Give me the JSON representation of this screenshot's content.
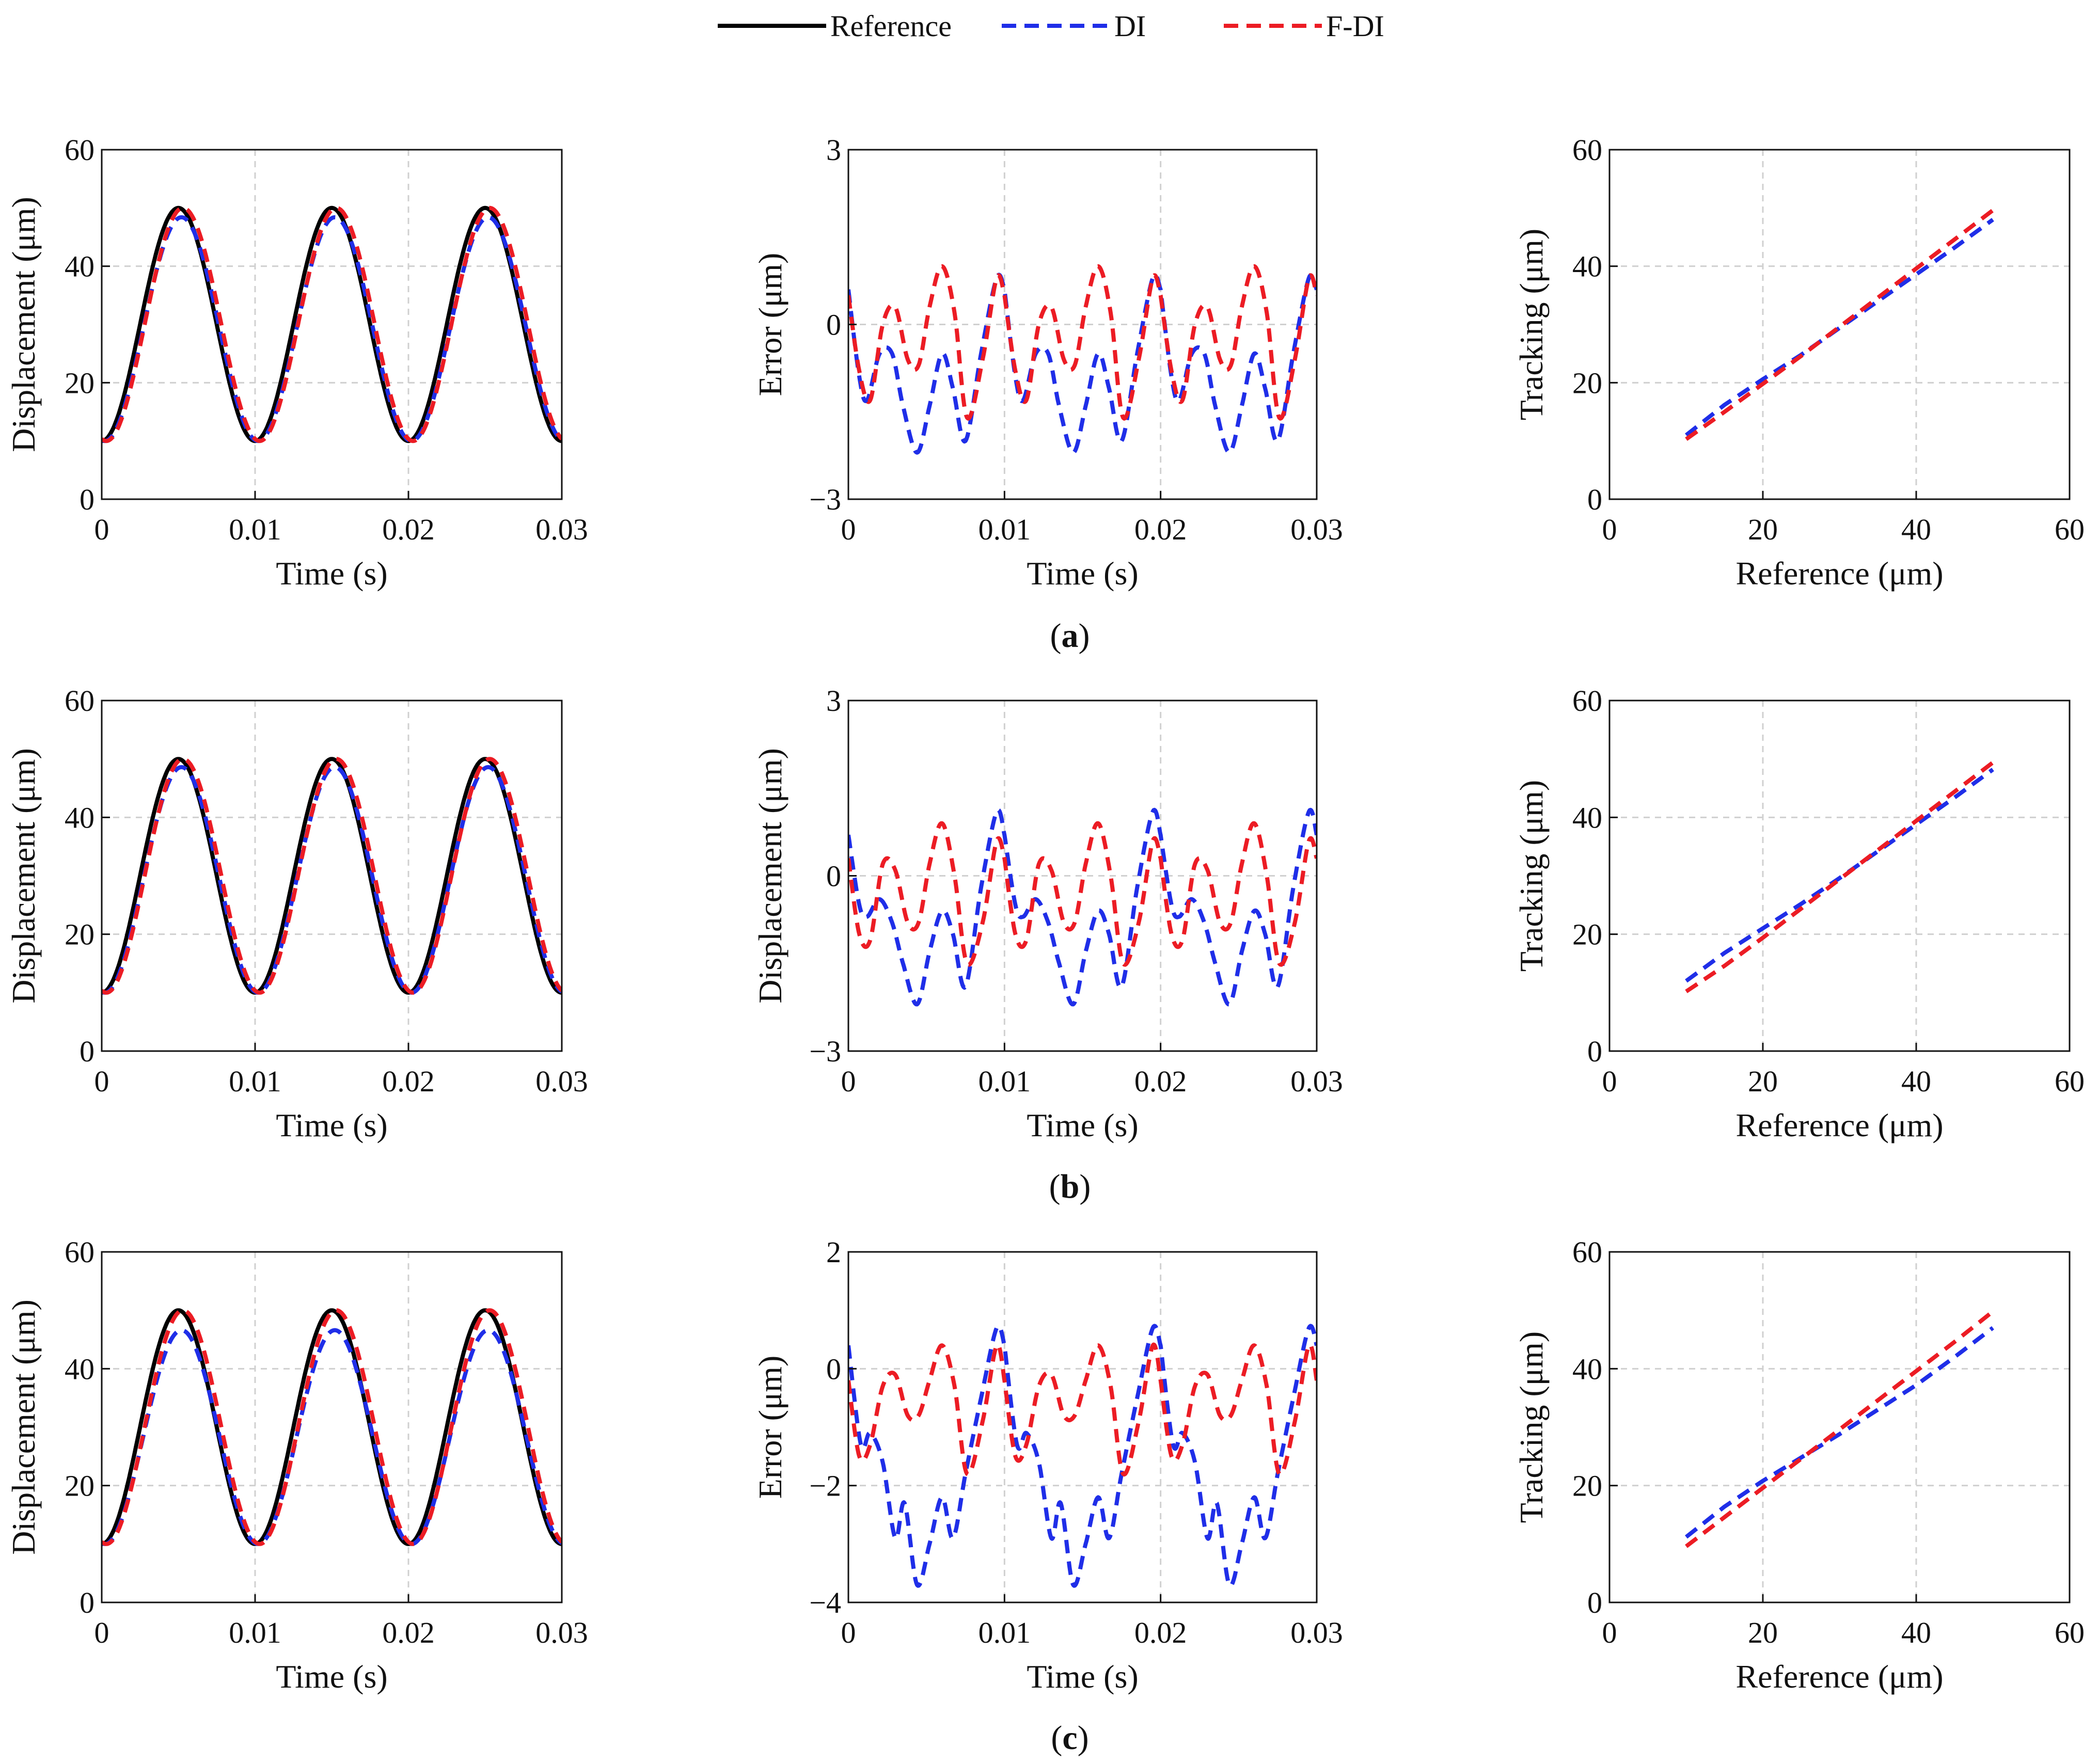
{
  "colors": {
    "reference": "#000000",
    "di": "#1f2ee8",
    "fdi": "#ec1c24",
    "grid": "#d0d0d0",
    "axis": "#111111"
  },
  "legend": [
    {
      "label": "Reference",
      "style": "solid",
      "color": "#000000"
    },
    {
      "label": "DI",
      "style": "dashed",
      "color": "#1f2ee8"
    },
    {
      "label": "F-DI",
      "style": "dashed",
      "color": "#ec1c24"
    }
  ],
  "rows": [
    {
      "caption": {
        "open": "(",
        "letter": "a",
        "close": ")"
      }
    },
    {
      "caption": {
        "open": "(",
        "letter": "b",
        "close": ")"
      }
    },
    {
      "caption": {
        "open": "(",
        "letter": "c",
        "close": ")"
      }
    }
  ],
  "chart_data": [
    {
      "type": "line",
      "row": "a",
      "col": 0,
      "kind": "disp",
      "xlabel": "Time (s)",
      "ylabel": "Displacement (μm)",
      "xlim": [
        0,
        0.03
      ],
      "ylim": [
        0,
        60
      ],
      "xticks": [
        0,
        0.01,
        0.02,
        0.03
      ],
      "yticks": [
        0,
        20,
        40,
        60
      ],
      "xticklabels": [
        "0",
        "0.01",
        "0.02",
        "0.03"
      ],
      "yticklabels": [
        "0",
        "20",
        "40",
        "60"
      ],
      "series": [
        {
          "name": "Reference",
          "form": "sine",
          "offset": 30,
          "amp": 20,
          "period": 0.01
        },
        {
          "name": "DI",
          "form": "sine",
          "offset": 29.2,
          "amp": 19.2,
          "period": 0.01,
          "lag": 0.0002
        },
        {
          "name": "F-DI",
          "form": "sine",
          "offset": 30,
          "amp": 20,
          "period": 0.01,
          "lag": 0.0003
        }
      ]
    },
    {
      "type": "line",
      "row": "a",
      "col": 1,
      "kind": "error",
      "xlabel": "Time (s)",
      "ylabel": "Error (μm)",
      "xlim": [
        0,
        0.03
      ],
      "ylim": [
        -3,
        3
      ],
      "xticks": [
        0,
        0.01,
        0.02,
        0.03
      ],
      "yticks": [
        -3,
        0,
        3
      ],
      "xticklabels": [
        "0",
        "0.01",
        "0.02",
        "0.03"
      ],
      "yticklabels": [
        "−3",
        "0",
        "3"
      ],
      "series": [
        {
          "name": "DI",
          "period": 0.01,
          "x": [
            0,
            0.0007,
            0.0012,
            0.002,
            0.0028,
            0.0035,
            0.0044,
            0.0052,
            0.006,
            0.0067,
            0.0075,
            0.0085,
            0.0095,
            0.01
          ],
          "y": [
            0.6,
            -0.9,
            -1.3,
            -0.5,
            -0.5,
            -1.4,
            -2.2,
            -1.4,
            -0.5,
            -1.1,
            -2.0,
            -0.5,
            0.8,
            0.6
          ]
        },
        {
          "name": "F-DI",
          "period": 0.01,
          "x": [
            0,
            0.0007,
            0.0014,
            0.0022,
            0.003,
            0.0038,
            0.0045,
            0.0052,
            0.006,
            0.0068,
            0.0076,
            0.0086,
            0.0095,
            0.01
          ],
          "y": [
            0.5,
            -0.8,
            -1.3,
            0.0,
            0.3,
            -0.6,
            -0.7,
            0.3,
            1.0,
            0.2,
            -1.6,
            -0.6,
            0.8,
            0.5
          ]
        }
      ]
    },
    {
      "type": "line",
      "row": "a",
      "col": 2,
      "kind": "track",
      "xlabel": "Reference (μm)",
      "ylabel": "Tracking (μm)",
      "xlim": [
        0,
        60
      ],
      "ylim": [
        0,
        60
      ],
      "xticks": [
        0,
        20,
        40,
        60
      ],
      "yticks": [
        0,
        20,
        40,
        60
      ],
      "xticklabels": [
        "0",
        "20",
        "40",
        "60"
      ],
      "yticklabels": [
        "0",
        "20",
        "40",
        "60"
      ],
      "series": [
        {
          "name": "DI",
          "x": [
            10,
            15,
            20,
            25,
            30,
            35,
            40,
            45,
            50
          ],
          "y": [
            11,
            16.2,
            20.6,
            24.8,
            29.4,
            34,
            38.6,
            43.2,
            48
          ]
        },
        {
          "name": "F-DI",
          "x": [
            10,
            15,
            20,
            25,
            30,
            35,
            40,
            45,
            50
          ],
          "y": [
            10.3,
            15,
            19.8,
            24.6,
            29.6,
            34.6,
            39.6,
            44.6,
            49.6
          ]
        }
      ]
    },
    {
      "type": "line",
      "row": "b",
      "col": 0,
      "kind": "disp",
      "xlabel": "Time (s)",
      "ylabel": "Displacement (μm)",
      "xlim": [
        0,
        0.03
      ],
      "ylim": [
        0,
        60
      ],
      "xticks": [
        0,
        0.01,
        0.02,
        0.03
      ],
      "yticks": [
        0,
        20,
        40,
        60
      ],
      "xticklabels": [
        "0",
        "0.01",
        "0.02",
        "0.03"
      ],
      "yticklabels": [
        "0",
        "20",
        "40",
        "60"
      ],
      "series": [
        {
          "name": "Reference",
          "form": "sine",
          "offset": 30,
          "amp": 20,
          "period": 0.01
        },
        {
          "name": "DI",
          "form": "sine",
          "offset": 29.3,
          "amp": 19.3,
          "period": 0.01,
          "lag": 0.0002
        },
        {
          "name": "F-DI",
          "form": "sine",
          "offset": 30,
          "amp": 20,
          "period": 0.01,
          "lag": 0.0003
        }
      ]
    },
    {
      "type": "line",
      "row": "b",
      "col": 1,
      "kind": "error",
      "xlabel": "Time (s)",
      "ylabel": "Displacement (μm)",
      "xlim": [
        0,
        0.03
      ],
      "ylim": [
        -3,
        3
      ],
      "xticks": [
        0,
        0.01,
        0.02,
        0.03
      ],
      "yticks": [
        -3,
        0,
        3
      ],
      "xticklabels": [
        "0",
        "0.01",
        "0.02",
        "0.03"
      ],
      "yticklabels": [
        "−3",
        "0",
        "3"
      ],
      "series": [
        {
          "name": "DI",
          "period": 0.01,
          "x": [
            0,
            0.0007,
            0.0012,
            0.002,
            0.0028,
            0.0035,
            0.0044,
            0.0052,
            0.006,
            0.0067,
            0.0075,
            0.0085,
            0.0095,
            0.01
          ],
          "y": [
            0.7,
            -0.5,
            -0.7,
            -0.4,
            -0.8,
            -1.5,
            -2.2,
            -1.3,
            -0.6,
            -1.0,
            -1.9,
            -0.2,
            1.1,
            0.7
          ]
        },
        {
          "name": "F-DI",
          "period": 0.01,
          "x": [
            0,
            0.0007,
            0.0014,
            0.0022,
            0.003,
            0.0038,
            0.0045,
            0.0052,
            0.006,
            0.0068,
            0.0076,
            0.0086,
            0.0095,
            0.01
          ],
          "y": [
            0.3,
            -1.0,
            -1.1,
            0.2,
            0.1,
            -0.8,
            -0.8,
            0.2,
            0.9,
            0.0,
            -1.5,
            -0.8,
            0.6,
            0.3
          ]
        }
      ]
    },
    {
      "type": "line",
      "row": "b",
      "col": 2,
      "kind": "track",
      "xlabel": "Reference (μm)",
      "ylabel": "Tracking (μm)",
      "xlim": [
        0,
        60
      ],
      "ylim": [
        0,
        60
      ],
      "xticks": [
        0,
        20,
        40,
        60
      ],
      "yticks": [
        0,
        20,
        40,
        60
      ],
      "xticklabels": [
        "0",
        "20",
        "40",
        "60"
      ],
      "yticklabels": [
        "0",
        "20",
        "40",
        "60"
      ],
      "series": [
        {
          "name": "DI",
          "x": [
            10,
            15,
            20,
            25,
            30,
            35,
            40,
            45,
            50
          ],
          "y": [
            12,
            16.8,
            21,
            25.2,
            29.6,
            34.2,
            38.8,
            43.4,
            48.2
          ]
        },
        {
          "name": "F-DI",
          "x": [
            10,
            15,
            20,
            25,
            30,
            35,
            40,
            45,
            50
          ],
          "y": [
            10.2,
            14.6,
            19.4,
            24.4,
            29.4,
            34.4,
            39.4,
            44.4,
            49.4
          ]
        }
      ]
    },
    {
      "type": "line",
      "row": "c",
      "col": 0,
      "kind": "disp",
      "xlabel": "Time (s)",
      "ylabel": "Displacement (μm)",
      "xlim": [
        0,
        0.03
      ],
      "ylim": [
        0,
        60
      ],
      "xticks": [
        0,
        0.01,
        0.02,
        0.03
      ],
      "yticks": [
        0,
        20,
        40,
        60
      ],
      "xticklabels": [
        "0",
        "0.01",
        "0.02",
        "0.03"
      ],
      "yticklabels": [
        "0",
        "20",
        "40",
        "60"
      ],
      "series": [
        {
          "name": "Reference",
          "form": "sine",
          "offset": 30,
          "amp": 20,
          "period": 0.01
        },
        {
          "name": "DI",
          "form": "sine",
          "offset": 28.3,
          "amp": 18.3,
          "period": 0.01,
          "lag": 0.0002
        },
        {
          "name": "F-DI",
          "form": "sine",
          "offset": 30,
          "amp": 20,
          "period": 0.01,
          "lag": 0.0003
        }
      ]
    },
    {
      "type": "line",
      "row": "c",
      "col": 1,
      "kind": "error",
      "xlabel": "Time (s)",
      "ylabel": "Error (μm)",
      "xlim": [
        0,
        0.03
      ],
      "ylim": [
        -4,
        2
      ],
      "xticks": [
        0,
        0.01,
        0.02,
        0.03
      ],
      "yticks": [
        -4,
        -2,
        0,
        2
      ],
      "xticklabels": [
        "0",
        "0.01",
        "0.02",
        "0.03"
      ],
      "yticklabels": [
        "−4",
        "−2",
        "0",
        "2"
      ],
      "series": [
        {
          "name": "DI",
          "period": 0.01,
          "x": [
            0,
            0.0008,
            0.0014,
            0.0022,
            0.003,
            0.0036,
            0.0044,
            0.0052,
            0.006,
            0.0067,
            0.0075,
            0.0085,
            0.0095,
            0.01
          ],
          "y": [
            0.4,
            -1.3,
            -1.1,
            -1.6,
            -2.9,
            -2.3,
            -3.7,
            -3.0,
            -2.2,
            -2.9,
            -1.8,
            -0.5,
            0.7,
            0.4
          ]
        },
        {
          "name": "F-DI",
          "period": 0.01,
          "x": [
            0,
            0.0007,
            0.0014,
            0.0022,
            0.003,
            0.0038,
            0.0045,
            0.0052,
            0.006,
            0.0068,
            0.0076,
            0.0086,
            0.0095,
            0.01
          ],
          "y": [
            -0.2,
            -1.5,
            -1.3,
            -0.3,
            -0.1,
            -0.8,
            -0.8,
            -0.2,
            0.4,
            -0.3,
            -1.8,
            -0.9,
            0.4,
            -0.2
          ]
        }
      ]
    },
    {
      "type": "line",
      "row": "c",
      "col": 2,
      "kind": "track",
      "xlabel": "Reference (μm)",
      "ylabel": "Tracking (μm)",
      "xlim": [
        0,
        60
      ],
      "ylim": [
        0,
        60
      ],
      "xticks": [
        0,
        20,
        40,
        60
      ],
      "yticks": [
        0,
        20,
        40,
        60
      ],
      "xticklabels": [
        "0",
        "20",
        "40",
        "60"
      ],
      "yticklabels": [
        "0",
        "20",
        "40",
        "60"
      ],
      "series": [
        {
          "name": "DI",
          "x": [
            10,
            15,
            20,
            25,
            30,
            35,
            40,
            45,
            50
          ],
          "y": [
            11.2,
            16.4,
            20.8,
            24.8,
            28.8,
            33,
            37.2,
            42,
            47
          ]
        },
        {
          "name": "F-DI",
          "x": [
            10,
            15,
            20,
            25,
            30,
            35,
            40,
            45,
            50
          ],
          "y": [
            9.6,
            14.6,
            19.6,
            24.6,
            29.6,
            34.6,
            39.6,
            44.6,
            49.8
          ]
        }
      ]
    }
  ]
}
